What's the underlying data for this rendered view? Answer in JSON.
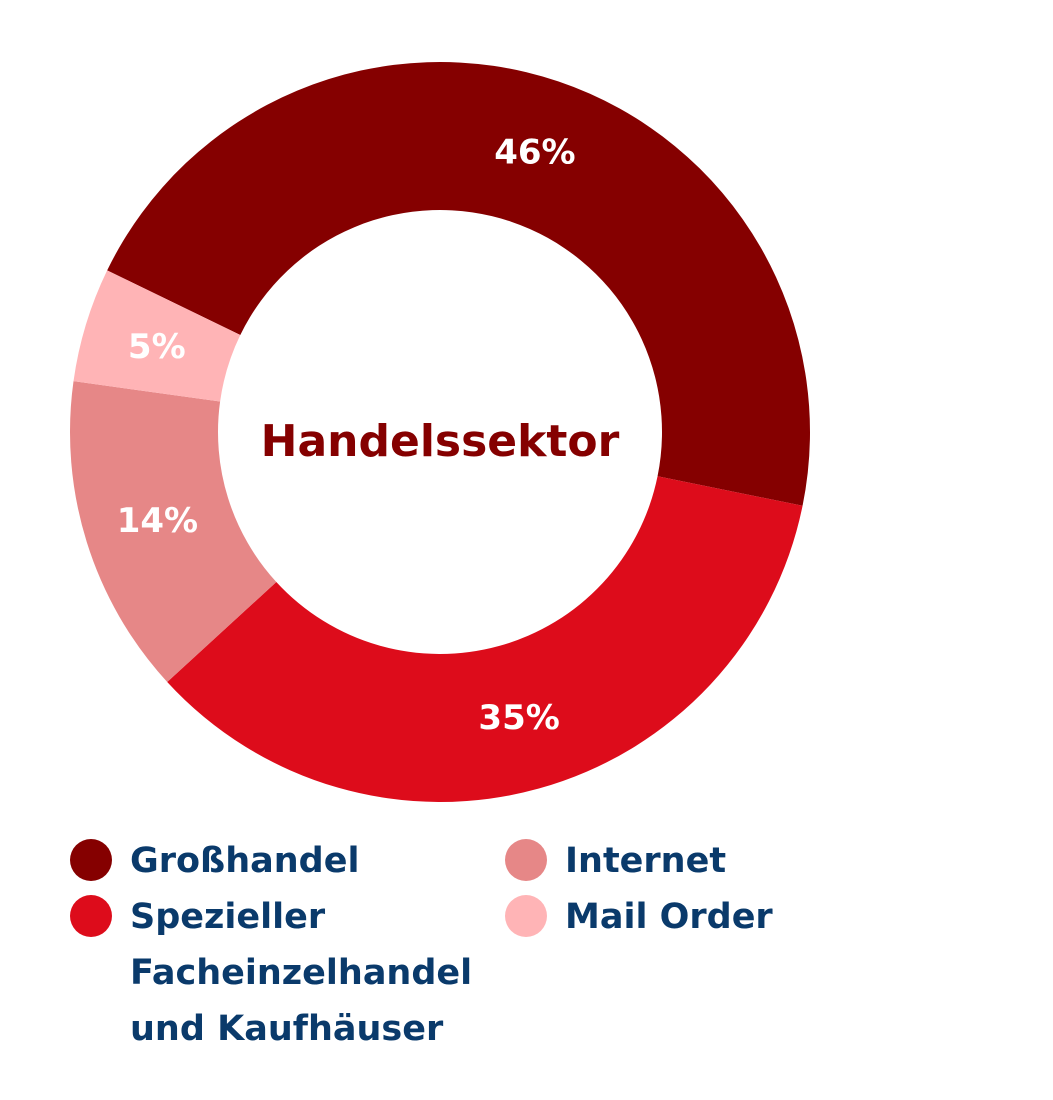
{
  "chart_data": {
    "type": "pie",
    "center_text": "Handelssektor",
    "slices": [
      {
        "name": "Großhandel",
        "value": 46,
        "label": "46%",
        "color": "#850000"
      },
      {
        "name": "Spezieller Facheinzelhandel und Kaufhäuser",
        "value": 35,
        "label": "35%",
        "color": "#dd0c1b"
      },
      {
        "name": "Internet",
        "value": 14,
        "label": "14%",
        "color": "#e68787"
      },
      {
        "name": "Mail Order",
        "value": 5,
        "label": "5%",
        "color": "#ffb4b6"
      }
    ],
    "legend": {
      "placement": "bottom",
      "columns": [
        [
          "Großhandel",
          "Spezieller Facheinzelhandel und Kaufhäuser"
        ],
        [
          "Internet",
          "Mail Order"
        ]
      ]
    }
  },
  "colors": {
    "center_text": "#850000",
    "legend_text": "#0a3a6b"
  }
}
